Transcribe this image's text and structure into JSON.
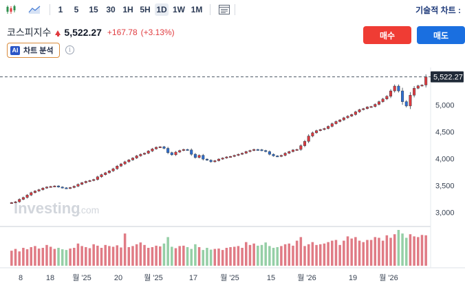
{
  "toolbar": {
    "timeframes": [
      "1",
      "5",
      "15",
      "30",
      "1H",
      "5H",
      "1D",
      "1W",
      "1M"
    ],
    "active_timeframe": "1D",
    "technical_chart_label": "기술적 차트 :"
  },
  "instrument": {
    "name": "코스피지수",
    "price": "5,522.27",
    "change": "+167.78",
    "change_percent": "(+3.13%)",
    "direction": "up"
  },
  "actions": {
    "buy_label": "매수",
    "sell_label": "매도"
  },
  "ai_analysis": {
    "badge": "AI",
    "label": "차트 분석",
    "info_glyph": "i"
  },
  "watermark": {
    "text": "Investing",
    "suffix": ".com"
  },
  "colors": {
    "up": "#e03a3e",
    "down": "#2f6fd1",
    "vol_up": "#e07b85",
    "vol_down": "#95cfa6",
    "buy": "#ef3c34",
    "sell": "#1a6fe0"
  },
  "chart_data": {
    "type": "candlestick",
    "ylim": [
      2850,
      5620
    ],
    "y_ticks": [
      3000,
      3500,
      4000,
      4500,
      5000
    ],
    "y_tick_labels": [
      "3,000",
      "3,500",
      "4,000",
      "4,500",
      "5,000"
    ],
    "last_price": 5522.27,
    "last_price_label": "5,522.27",
    "x_tick_labels": [
      "8",
      "18",
      "월 '25",
      "20",
      "월 '25",
      "17",
      "월 '25",
      "15",
      "월 '26",
      "19",
      "월 '26"
    ],
    "closes": [
      3180,
      3195,
      3240,
      3275,
      3320,
      3365,
      3395,
      3420,
      3450,
      3470,
      3480,
      3490,
      3470,
      3455,
      3445,
      3460,
      3485,
      3520,
      3550,
      3575,
      3590,
      3610,
      3660,
      3700,
      3735,
      3770,
      3810,
      3860,
      3900,
      3940,
      3975,
      4010,
      4050,
      4080,
      4100,
      4140,
      4180,
      4210,
      4220,
      4190,
      4110,
      4070,
      4120,
      4150,
      4170,
      4160,
      4080,
      4020,
      4060,
      3990,
      3970,
      3940,
      3960,
      3990,
      4010,
      4030,
      4040,
      4060,
      4080,
      4100,
      4130,
      4150,
      4170,
      4165,
      4150,
      4130,
      4080,
      4050,
      4040,
      4060,
      4100,
      4130,
      4160,
      4170,
      4240,
      4320,
      4420,
      4480,
      4520,
      4540,
      4560,
      4600,
      4650,
      4690,
      4720,
      4760,
      4790,
      4820,
      4870,
      4910,
      4930,
      4960,
      4970,
      5010,
      5060,
      5110,
      5160,
      5260,
      5350,
      5260,
      5060,
      4980,
      5180,
      5310,
      5355,
      5370,
      5522
    ],
    "volumes": [
      0.42,
      0.47,
      0.4,
      0.5,
      0.46,
      0.52,
      0.55,
      0.48,
      0.5,
      0.58,
      0.53,
      0.47,
      0.5,
      0.46,
      0.44,
      0.48,
      0.5,
      0.62,
      0.55,
      0.52,
      0.49,
      0.6,
      0.56,
      0.5,
      0.58,
      0.55,
      0.53,
      0.57,
      0.51,
      0.9,
      0.52,
      0.55,
      0.6,
      0.65,
      0.58,
      0.5,
      0.52,
      0.56,
      0.54,
      0.62,
      0.8,
      0.53,
      0.49,
      0.55,
      0.56,
      0.52,
      0.47,
      0.6,
      0.52,
      0.44,
      0.5,
      0.45,
      0.47,
      0.48,
      0.44,
      0.5,
      0.52,
      0.53,
      0.55,
      0.5,
      0.66,
      0.58,
      0.62,
      0.56,
      0.58,
      0.65,
      0.55,
      0.5,
      0.52,
      0.55,
      0.6,
      0.62,
      0.56,
      0.7,
      0.8,
      0.55,
      0.6,
      0.66,
      0.58,
      0.6,
      0.62,
      0.66,
      0.7,
      0.72,
      0.58,
      0.7,
      0.82,
      0.76,
      0.8,
      0.7,
      0.66,
      0.72,
      0.72,
      0.8,
      0.78,
      0.7,
      0.85,
      0.78,
      0.88,
      1.0,
      0.9,
      0.78,
      0.88,
      0.82,
      0.8,
      0.86,
      0.85
    ]
  }
}
